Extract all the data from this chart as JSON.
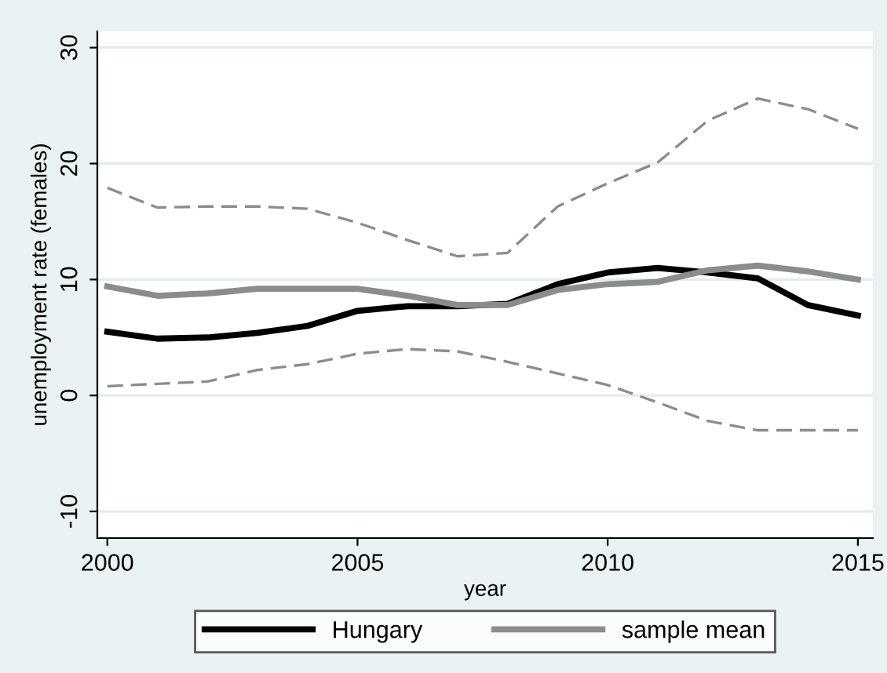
{
  "chart_data": {
    "type": "line",
    "xlabel": "year",
    "ylabel": "unemployment rate (females)",
    "x": [
      2000,
      2001,
      2002,
      2003,
      2004,
      2005,
      2006,
      2007,
      2008,
      2009,
      2010,
      2011,
      2012,
      2013,
      2014,
      2015
    ],
    "series": [
      {
        "name": "Hungary",
        "color": "#000000",
        "line_style": "solid",
        "values": [
          5.5,
          4.9,
          5.0,
          5.4,
          6.0,
          7.3,
          7.7,
          7.7,
          7.9,
          9.6,
          10.6,
          11.0,
          10.6,
          10.1,
          7.8,
          6.9
        ]
      },
      {
        "name": "sample mean",
        "color": "#8c8c8c",
        "line_style": "solid",
        "values": [
          9.4,
          8.6,
          8.8,
          9.2,
          9.2,
          9.2,
          8.6,
          7.8,
          7.8,
          9.1,
          9.6,
          9.8,
          10.8,
          11.2,
          10.7,
          10.0
        ]
      },
      {
        "color": "#8c8c8c",
        "line_style": "dashed",
        "values": [
          17.9,
          16.2,
          16.3,
          16.3,
          16.1,
          14.9,
          13.4,
          12.0,
          12.3,
          16.3,
          18.3,
          20.1,
          23.7,
          25.6,
          24.7,
          23.0
        ]
      },
      {
        "color": "#8c8c8c",
        "line_style": "dashed",
        "values": [
          0.8,
          1.0,
          1.2,
          2.2,
          2.7,
          3.6,
          4.0,
          3.8,
          2.9,
          1.9,
          0.9,
          -0.6,
          -2.2,
          -3.0,
          -3.0,
          -3.0
        ]
      }
    ],
    "xlim": [
      1999.8,
      2015.3
    ],
    "xticks": [
      2000,
      2005,
      2010,
      2015
    ],
    "ylim": [
      -12.3,
      31.4
    ],
    "yticks": [
      -10,
      0,
      10,
      20,
      30
    ],
    "grid": "y",
    "legend": "bottom"
  }
}
